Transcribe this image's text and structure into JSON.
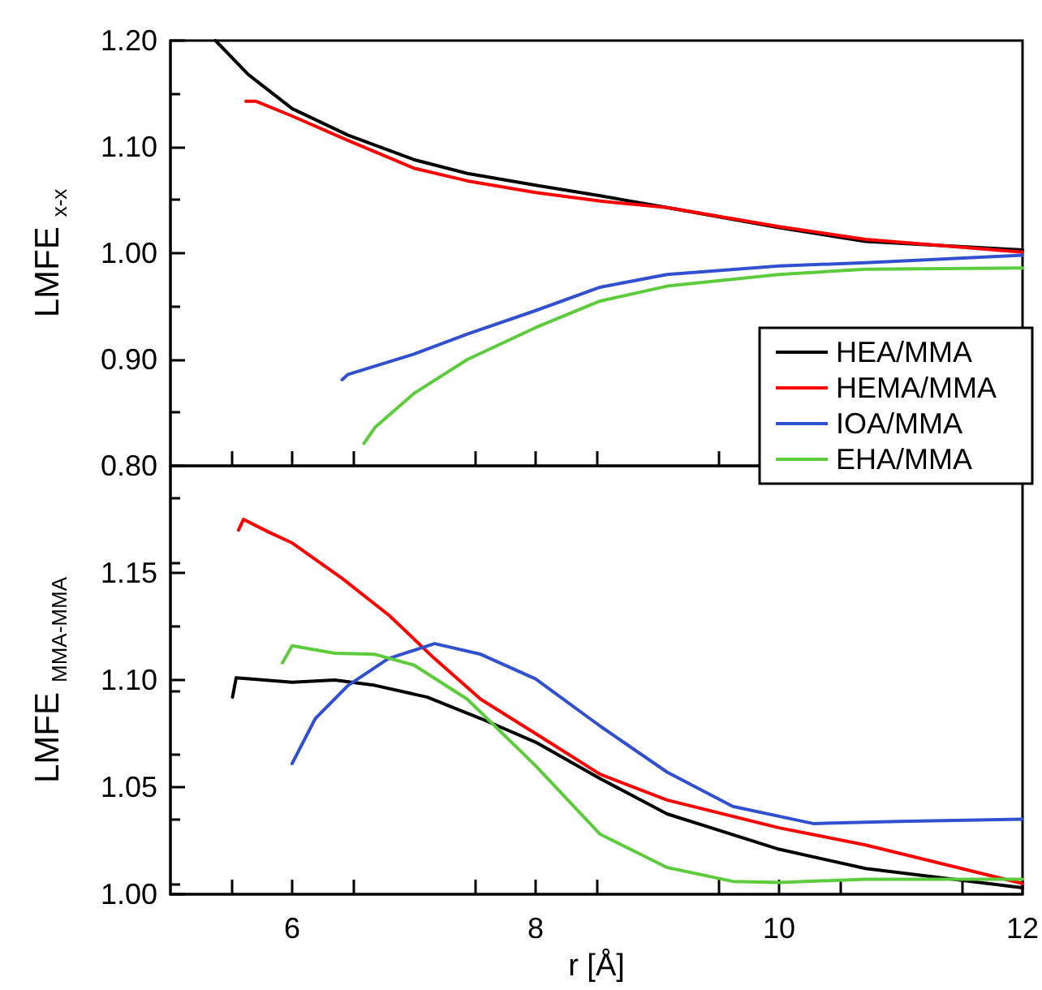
{
  "chart_data": [
    {
      "type": "line",
      "ylabel": "LMFE$_{x-x}$",
      "xlim": [
        5,
        12
      ],
      "xticks": [
        6,
        8,
        10,
        12
      ],
      "ylim": [
        0.8,
        1.2
      ],
      "yticks": [
        {
          "value": 0.8,
          "label": "0.80"
        },
        {
          "value": 0.9,
          "label": "0.90"
        },
        {
          "value": 1.0,
          "label": "1.00"
        },
        {
          "value": 1.1,
          "label": "1.10"
        },
        {
          "value": 1.2,
          "label": "1.20"
        }
      ],
      "tick_labels": "y",
      "grid": false,
      "legend": "bottom right",
      "marker": "none",
      "line_style": "solid",
      "series": [
        {
          "name": "HEA/MMA",
          "color": "#000000",
          "x": [
            5.37,
            5.64,
            6.0,
            6.46,
            7.0,
            7.44,
            8.0,
            8.53,
            9.08,
            10.0,
            10.71,
            12.0
          ],
          "values": [
            1.2,
            1.168,
            1.136,
            1.111,
            1.088,
            1.075,
            1.064,
            1.054,
            1.043,
            1.024,
            1.011,
            1.003
          ]
        },
        {
          "name": "HEMA/MMA",
          "color": "#ff0000",
          "x": [
            5.62,
            5.7,
            6.0,
            6.46,
            7.0,
            7.44,
            8.0,
            8.53,
            9.08,
            10.0,
            10.71,
            12.0
          ],
          "values": [
            1.143,
            1.143,
            1.129,
            1.106,
            1.08,
            1.068,
            1.057,
            1.049,
            1.043,
            1.025,
            1.013,
            1.001
          ]
        },
        {
          "name": "IOA/MMA",
          "color": "#3050d0",
          "x": [
            6.41,
            6.46,
            7.0,
            7.44,
            8.0,
            8.53,
            9.08,
            10.0,
            10.71,
            12.0
          ],
          "values": [
            0.881,
            0.886,
            0.905,
            0.924,
            0.946,
            0.968,
            0.98,
            0.988,
            0.991,
            0.998
          ]
        },
        {
          "name": "EHA/MMA",
          "color": "#5ccc3c",
          "x": [
            6.59,
            6.68,
            7.0,
            7.44,
            8.0,
            8.53,
            9.08,
            10.0,
            10.71,
            12.0
          ],
          "values": [
            0.821,
            0.836,
            0.868,
            0.9,
            0.93,
            0.955,
            0.969,
            0.98,
            0.985,
            0.986
          ]
        }
      ]
    },
    {
      "type": "line",
      "xlabel": "r [Å]",
      "ylabel": "LMFE$_{MMA-MMA}$",
      "xlim": [
        5,
        12
      ],
      "xticks": [
        6,
        8,
        10,
        12
      ],
      "ylim": [
        1.0,
        1.2
      ],
      "yticks": [
        {
          "value": 1.0,
          "label": "1.00"
        },
        {
          "value": 1.05,
          "label": "1.05"
        },
        {
          "value": 1.1,
          "label": "1.10"
        },
        {
          "value": 1.15,
          "label": "1.15"
        },
        {
          "value": 1.2,
          "label": null
        }
      ],
      "grid": false,
      "marker": "none",
      "line_style": "solid",
      "series": [
        {
          "color": "#000000",
          "x": [
            5.51,
            5.54,
            6.0,
            6.35,
            6.68,
            7.11,
            7.55,
            8.0,
            8.53,
            9.08,
            10.0,
            10.71,
            12.0
          ],
          "values": [
            1.092,
            1.101,
            1.099,
            1.1,
            1.0975,
            1.092,
            1.082,
            1.071,
            1.054,
            1.0375,
            1.021,
            1.012,
            1.003
          ]
        },
        {
          "color": "#ff0000",
          "x": [
            5.56,
            5.6,
            5.81,
            6.0,
            6.41,
            6.8,
            7.17,
            7.55,
            8.0,
            8.53,
            9.08,
            10.0,
            10.71,
            12.0
          ],
          "values": [
            1.17,
            1.175,
            1.169,
            1.164,
            1.1475,
            1.13,
            1.11,
            1.091,
            1.075,
            1.056,
            1.044,
            1.031,
            1.023,
            1.005
          ]
        },
        {
          "color": "#3050d0",
          "x": [
            6.0,
            6.19,
            6.46,
            6.79,
            7.17,
            7.55,
            8.0,
            8.53,
            9.08,
            9.62,
            10.28,
            10.98,
            12.0
          ],
          "values": [
            1.061,
            1.082,
            1.0975,
            1.11,
            1.117,
            1.112,
            1.1005,
            1.0785,
            1.057,
            1.041,
            1.033,
            1.034,
            1.035
          ]
        },
        {
          "color": "#5ccc3c",
          "x": [
            5.92,
            6.0,
            6.35,
            6.68,
            7.0,
            7.44,
            8.0,
            8.53,
            9.08,
            9.62,
            10.0,
            10.71,
            12.0
          ],
          "values": [
            1.108,
            1.116,
            1.1125,
            1.112,
            1.107,
            1.091,
            1.06,
            1.028,
            1.0125,
            1.006,
            1.0055,
            1.007,
            1.007
          ]
        }
      ]
    }
  ]
}
